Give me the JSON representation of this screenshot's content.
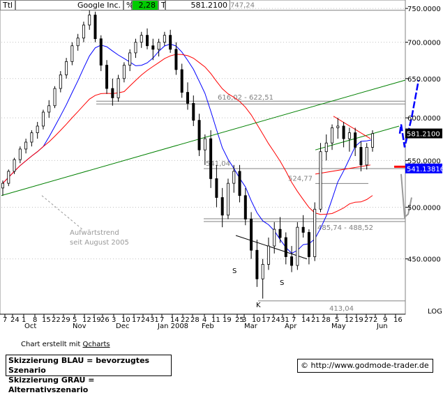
{
  "header": {
    "ttl": "Ttl",
    "symbol": "Google Inc.",
    "pct_label": "%",
    "pct_value": "2,28",
    "t_label": "T",
    "price": "581.2100"
  },
  "colors": {
    "background": "#ffffff",
    "grid": "#c0c0c0",
    "up_candle": "#ffffff",
    "down_candle": "#000000",
    "ma_blue": "#0000ff",
    "ma_red": "#ff0000",
    "trend_green": "#008000",
    "scenario_blue": "#0000ff",
    "scenario_gray": "#999999",
    "pct_green": "#00cc00"
  },
  "chart_data": {
    "type": "candlestick",
    "y_axis": {
      "ticks": [
        "750.0000",
        "700.0000",
        "650.0000",
        "600.0000",
        "550.0000",
        "500.0000",
        "450.0000"
      ],
      "tick_values": [
        750,
        700,
        650,
        600,
        550,
        500,
        450
      ],
      "ylim": [
        402,
        763
      ],
      "side": "right",
      "scale_label": "LOG"
    },
    "x_axis": {
      "day_ticks": [
        "7",
        "24",
        "1",
        "8",
        "15",
        "22",
        "29",
        "5",
        "12",
        "19",
        "26",
        "3",
        "10",
        "17",
        "24",
        "31",
        "7",
        "14",
        "22",
        "28",
        "4",
        "11",
        "19",
        "25",
        "3",
        "10",
        "17",
        "24",
        "31",
        "7",
        "14",
        "21",
        "28",
        "5",
        "12",
        "19",
        "27",
        "2",
        "9",
        "16"
      ],
      "month_labels": [
        "Oct",
        "Nov",
        "Dec",
        "Jan 2008",
        "Feb",
        "Mar",
        "Apr",
        "May",
        "Jun"
      ]
    },
    "last_price_label": "581.2100",
    "ma_value_label": "541.13816",
    "horizontal_levels": [
      {
        "label": "747,24",
        "value": 747.24
      },
      {
        "label": "616,02 - 622,51",
        "value": 619
      },
      {
        "label": "541,04",
        "value": 541.04
      },
      {
        "label": "524,77",
        "value": 524.77
      },
      {
        "label": "485,74 - 488,52",
        "value": 487
      },
      {
        "label": "413,04",
        "value": 413.04
      }
    ],
    "pattern_labels": [
      "S",
      "K",
      "S"
    ],
    "annotation": "Aufwärtstrend seit August 2005",
    "candles": [
      {
        "o": 520,
        "h": 528,
        "l": 512,
        "c": 525
      },
      {
        "o": 525,
        "h": 540,
        "l": 522,
        "c": 538
      },
      {
        "o": 538,
        "h": 553,
        "l": 535,
        "c": 551
      },
      {
        "o": 551,
        "h": 566,
        "l": 547,
        "c": 563
      },
      {
        "o": 563,
        "h": 575,
        "l": 558,
        "c": 571
      },
      {
        "o": 571,
        "h": 585,
        "l": 566,
        "c": 582
      },
      {
        "o": 582,
        "h": 595,
        "l": 575,
        "c": 590
      },
      {
        "o": 590,
        "h": 610,
        "l": 586,
        "c": 607
      },
      {
        "o": 607,
        "h": 622,
        "l": 600,
        "c": 615
      },
      {
        "o": 615,
        "h": 640,
        "l": 612,
        "c": 637
      },
      {
        "o": 637,
        "h": 660,
        "l": 632,
        "c": 655
      },
      {
        "o": 655,
        "h": 678,
        "l": 650,
        "c": 673
      },
      {
        "o": 673,
        "h": 700,
        "l": 668,
        "c": 695
      },
      {
        "o": 695,
        "h": 712,
        "l": 688,
        "c": 706
      },
      {
        "o": 706,
        "h": 730,
        "l": 700,
        "c": 725
      },
      {
        "o": 725,
        "h": 747,
        "l": 718,
        "c": 740
      },
      {
        "o": 740,
        "h": 745,
        "l": 700,
        "c": 705
      },
      {
        "o": 705,
        "h": 710,
        "l": 660,
        "c": 668
      },
      {
        "o": 668,
        "h": 675,
        "l": 630,
        "c": 637
      },
      {
        "o": 637,
        "h": 650,
        "l": 615,
        "c": 625
      },
      {
        "o": 625,
        "h": 655,
        "l": 620,
        "c": 650
      },
      {
        "o": 650,
        "h": 672,
        "l": 645,
        "c": 668
      },
      {
        "o": 668,
        "h": 690,
        "l": 660,
        "c": 685
      },
      {
        "o": 685,
        "h": 705,
        "l": 678,
        "c": 700
      },
      {
        "o": 700,
        "h": 715,
        "l": 692,
        "c": 710
      },
      {
        "o": 710,
        "h": 720,
        "l": 690,
        "c": 695
      },
      {
        "o": 695,
        "h": 705,
        "l": 675,
        "c": 690
      },
      {
        "o": 690,
        "h": 705,
        "l": 680,
        "c": 700
      },
      {
        "o": 700,
        "h": 715,
        "l": 695,
        "c": 710
      },
      {
        "o": 710,
        "h": 718,
        "l": 685,
        "c": 690
      },
      {
        "o": 690,
        "h": 700,
        "l": 655,
        "c": 662
      },
      {
        "o": 662,
        "h": 670,
        "l": 625,
        "c": 632
      },
      {
        "o": 632,
        "h": 645,
        "l": 610,
        "c": 618
      },
      {
        "o": 618,
        "h": 628,
        "l": 590,
        "c": 597
      },
      {
        "o": 597,
        "h": 605,
        "l": 555,
        "c": 562
      },
      {
        "o": 562,
        "h": 580,
        "l": 545,
        "c": 575
      },
      {
        "o": 575,
        "h": 585,
        "l": 520,
        "c": 530
      },
      {
        "o": 530,
        "h": 545,
        "l": 500,
        "c": 510
      },
      {
        "o": 510,
        "h": 520,
        "l": 480,
        "c": 492
      },
      {
        "o": 492,
        "h": 530,
        "l": 488,
        "c": 525
      },
      {
        "o": 525,
        "h": 545,
        "l": 515,
        "c": 538
      },
      {
        "o": 538,
        "h": 545,
        "l": 505,
        "c": 512
      },
      {
        "o": 512,
        "h": 520,
        "l": 482,
        "c": 488
      },
      {
        "o": 488,
        "h": 495,
        "l": 450,
        "c": 458
      },
      {
        "o": 458,
        "h": 468,
        "l": 425,
        "c": 432
      },
      {
        "o": 432,
        "h": 450,
        "l": 415,
        "c": 445
      },
      {
        "o": 445,
        "h": 470,
        "l": 440,
        "c": 462
      },
      {
        "o": 462,
        "h": 485,
        "l": 455,
        "c": 478
      },
      {
        "o": 478,
        "h": 490,
        "l": 465,
        "c": 470
      },
      {
        "o": 470,
        "h": 475,
        "l": 445,
        "c": 452
      },
      {
        "o": 452,
        "h": 462,
        "l": 438,
        "c": 444
      },
      {
        "o": 444,
        "h": 485,
        "l": 440,
        "c": 480
      },
      {
        "o": 480,
        "h": 492,
        "l": 470,
        "c": 475
      },
      {
        "o": 475,
        "h": 478,
        "l": 445,
        "c": 452
      },
      {
        "o": 452,
        "h": 505,
        "l": 448,
        "c": 498
      },
      {
        "o": 498,
        "h": 570,
        "l": 495,
        "c": 560
      },
      {
        "o": 560,
        "h": 580,
        "l": 550,
        "c": 570
      },
      {
        "o": 570,
        "h": 592,
        "l": 562,
        "c": 588
      },
      {
        "o": 588,
        "h": 600,
        "l": 575,
        "c": 590
      },
      {
        "o": 590,
        "h": 595,
        "l": 565,
        "c": 575
      },
      {
        "o": 575,
        "h": 588,
        "l": 560,
        "c": 582
      },
      {
        "o": 582,
        "h": 588,
        "l": 555,
        "c": 565
      },
      {
        "o": 565,
        "h": 572,
        "l": 538,
        "c": 545
      },
      {
        "o": 545,
        "h": 570,
        "l": 540,
        "c": 565
      },
      {
        "o": 565,
        "h": 585,
        "l": 560,
        "c": 581
      }
    ],
    "scenario_blue": [
      [
        573,
        581
      ],
      [
        575,
        592
      ],
      [
        580,
        565
      ],
      [
        590,
        600
      ],
      [
        600,
        648
      ]
    ],
    "scenario_gray": [
      [
        575,
        535
      ],
      [
        580,
        490
      ],
      [
        585,
        493
      ],
      [
        590,
        510
      ]
    ]
  },
  "footer": {
    "credit_prefix": "Chart erstellt mit",
    "credit_tool": "Qcharts",
    "legend_blue": "Skizzierung BLAU = bevorzugtes Szenario",
    "legend_gray": "Skizzierung GRAU = Alternativszenario",
    "copyright": "©",
    "url": "http://www.godmode-trader.de"
  }
}
